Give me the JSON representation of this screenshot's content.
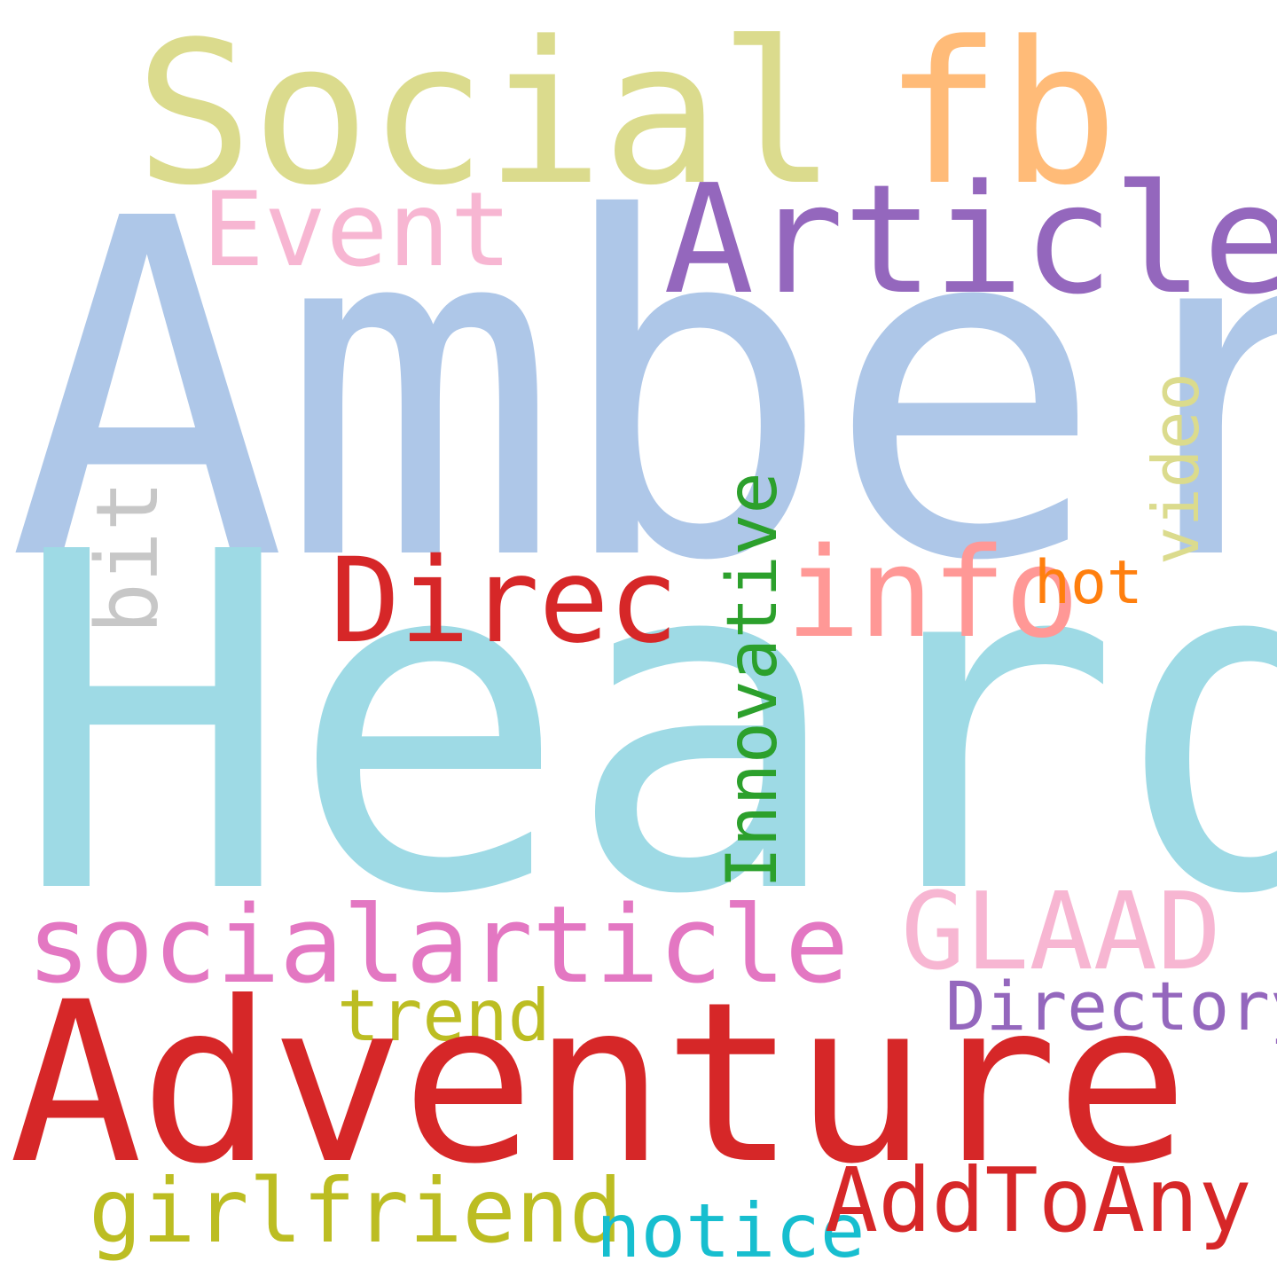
{
  "words": {
    "amber": {
      "text": "Amber",
      "color": "#aec7e8"
    },
    "heard": {
      "text": "Heard",
      "color": "#9edae5"
    },
    "adventure": {
      "text": "Adventure",
      "color": "#d62728"
    },
    "social": {
      "text": "Social",
      "color": "#dbdb8d"
    },
    "fb": {
      "text": "fb",
      "color": "#ffbb78"
    },
    "article": {
      "text": "Article",
      "color": "#9467bd"
    },
    "event": {
      "text": "Event",
      "color": "#f7b6d2"
    },
    "direc": {
      "text": "Direc",
      "color": "#d62728"
    },
    "info": {
      "text": "info",
      "color": "#ff9896"
    },
    "hot": {
      "text": "hot",
      "color": "#ff7f0e"
    },
    "socialarticle": {
      "text": "socialarticle",
      "color": "#e377c2"
    },
    "glaad": {
      "text": "GLAAD",
      "color": "#f7b6d2"
    },
    "directory": {
      "text": "Directory",
      "color": "#9467bd"
    },
    "trend": {
      "text": "trend",
      "color": "#bcbd22"
    },
    "girlfriend": {
      "text": "girlfriend",
      "color": "#bcbd22"
    },
    "notice": {
      "text": "notice",
      "color": "#17becf"
    },
    "addtoany": {
      "text": "AddToAny",
      "color": "#d62728"
    },
    "bit": {
      "text": "bit",
      "color": "#c7c7c7"
    },
    "innovative": {
      "text": "Innovative",
      "color": "#2ca02c"
    },
    "video": {
      "text": "video",
      "color": "#dbdb8d"
    }
  }
}
